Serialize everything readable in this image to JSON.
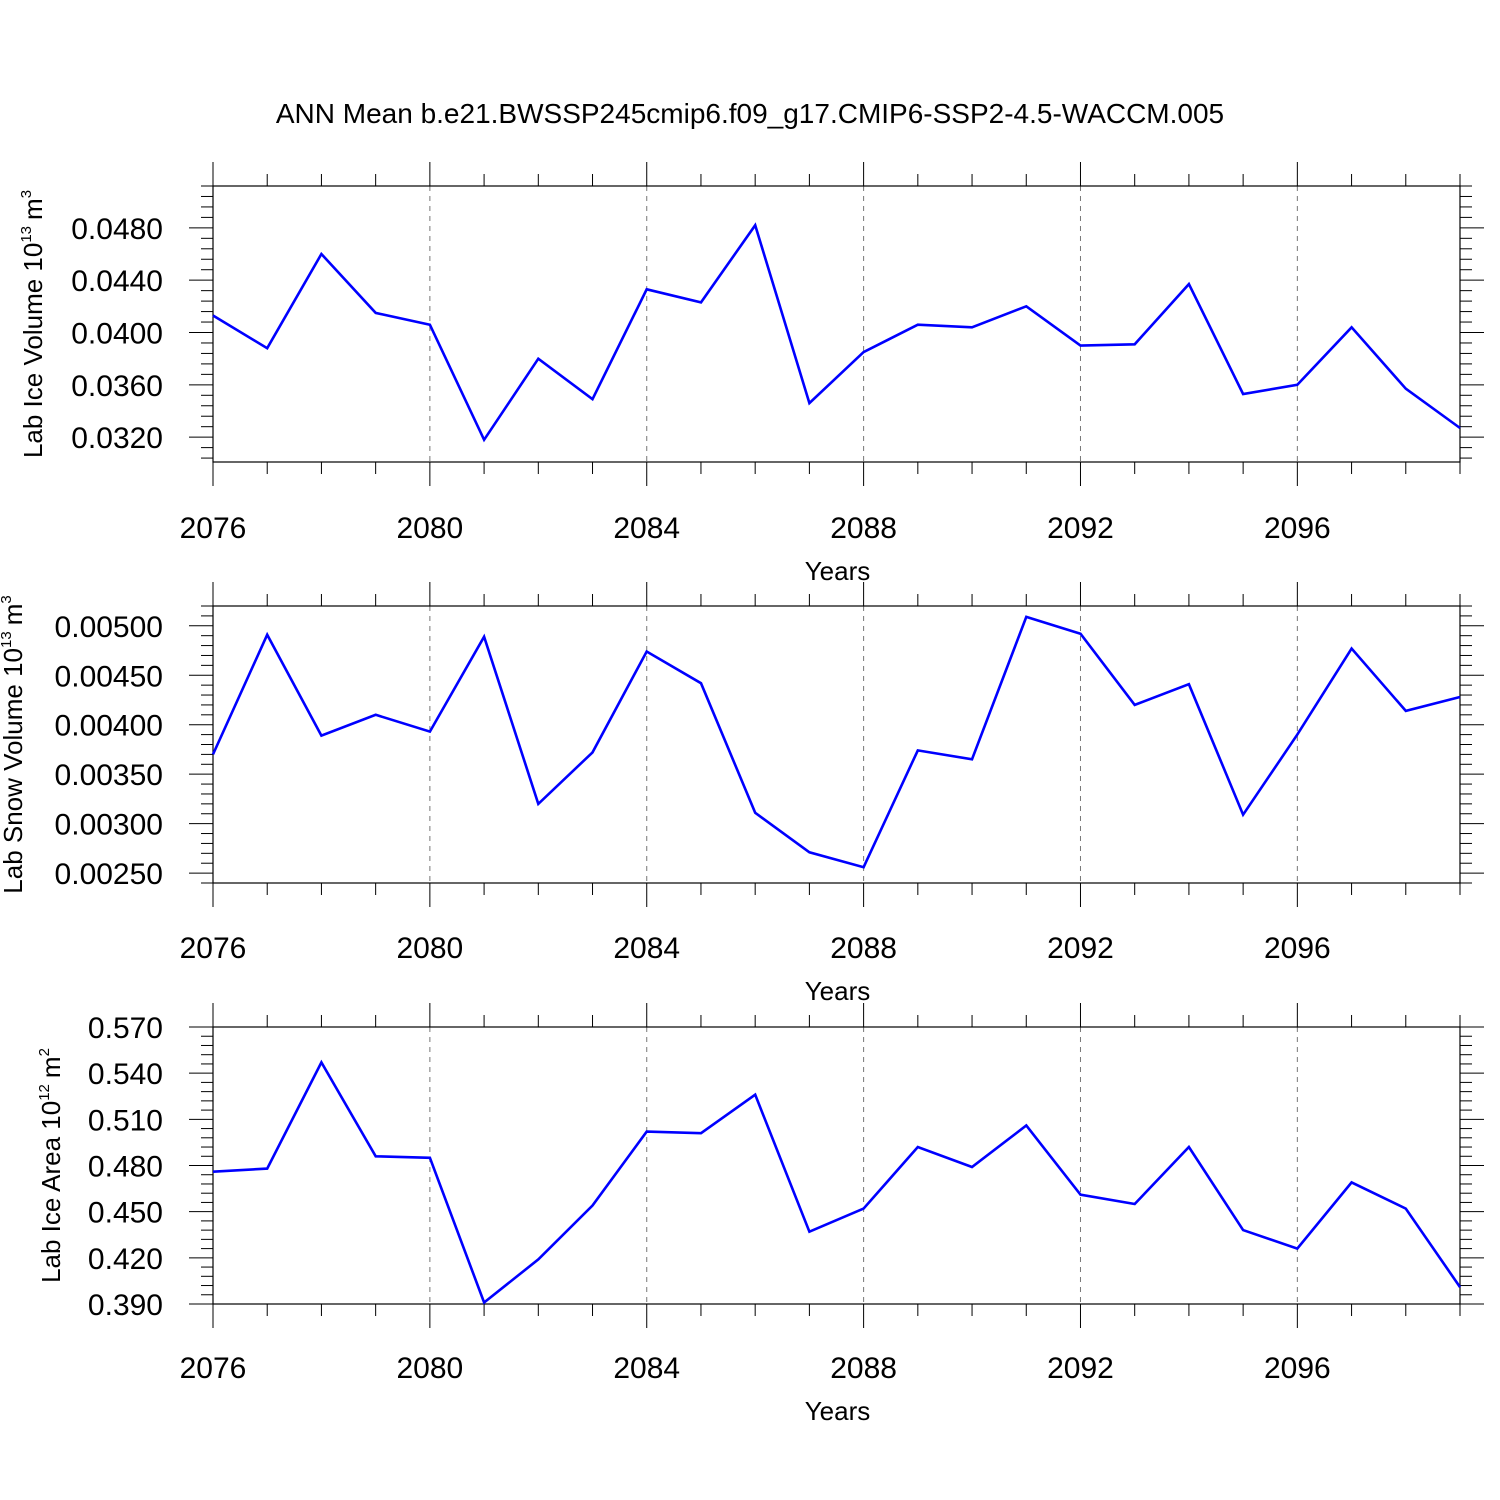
{
  "chart_data": {
    "figure_title": "ANN Mean b.e21.BWSSP245cmip6.f09_g17.CMIP6-SSP2-4.5-WACCM.005",
    "line_color": "#0000ff",
    "panels": [
      {
        "type": "line",
        "ylabel": "Lab Ice Volume 10",
        "ylabel_exp": "13",
        "ylabel_unit": "m",
        "ylabel_unit_exp": "3",
        "xlabel": "Years",
        "xlim": [
          2076,
          2099
        ],
        "ylim": [
          0.0301,
          0.0512
        ],
        "yticks": [
          0.032,
          0.036,
          0.04,
          0.044,
          0.048
        ],
        "ytick_labels": [
          "0.0320",
          "0.0360",
          "0.0400",
          "0.0440",
          "0.0480"
        ],
        "xticks": [
          2076,
          2080,
          2084,
          2088,
          2092,
          2096
        ],
        "xtick_labels": [
          "2076",
          "2080",
          "2084",
          "2088",
          "2092",
          "2096"
        ],
        "x": [
          2076,
          2077,
          2078,
          2079,
          2080,
          2081,
          2082,
          2083,
          2084,
          2085,
          2086,
          2087,
          2088,
          2089,
          2090,
          2091,
          2092,
          2093,
          2094,
          2095,
          2096,
          2097,
          2098,
          2099
        ],
        "values": [
          0.0413,
          0.0388,
          0.046,
          0.0415,
          0.0406,
          0.0318,
          0.038,
          0.0349,
          0.0433,
          0.0423,
          0.0482,
          0.0346,
          0.0385,
          0.0406,
          0.0404,
          0.042,
          0.039,
          0.0391,
          0.0437,
          0.0353,
          0.036,
          0.0404,
          0.0357,
          0.0327
        ]
      },
      {
        "type": "line",
        "ylabel": "Lab Snow Volume 10",
        "ylabel_exp": "13",
        "ylabel_unit": "m",
        "ylabel_unit_exp": "3",
        "xlabel": "Years",
        "xlim": [
          2076,
          2099
        ],
        "ylim": [
          0.0024,
          0.0052
        ],
        "yticks": [
          0.0025,
          0.003,
          0.0035,
          0.004,
          0.0045,
          0.005
        ],
        "ytick_labels": [
          "0.00250",
          "0.00300",
          "0.00350",
          "0.00400",
          "0.00450",
          "0.00500"
        ],
        "xticks": [
          2076,
          2080,
          2084,
          2088,
          2092,
          2096
        ],
        "xtick_labels": [
          "2076",
          "2080",
          "2084",
          "2088",
          "2092",
          "2096"
        ],
        "x": [
          2076,
          2077,
          2078,
          2079,
          2080,
          2081,
          2082,
          2083,
          2084,
          2085,
          2086,
          2087,
          2088,
          2089,
          2090,
          2091,
          2092,
          2093,
          2094,
          2095,
          2096,
          2097,
          2098,
          2099
        ],
        "values": [
          0.0037,
          0.00491,
          0.00389,
          0.0041,
          0.00393,
          0.00489,
          0.0032,
          0.00372,
          0.00474,
          0.00442,
          0.00311,
          0.00271,
          0.00256,
          0.00374,
          0.00365,
          0.00509,
          0.00492,
          0.0042,
          0.00441,
          0.00309,
          0.0039,
          0.00477,
          0.00414,
          0.00428
        ]
      },
      {
        "type": "line",
        "ylabel": "Lab Ice Area 10",
        "ylabel_exp": "12",
        "ylabel_unit": "m",
        "ylabel_unit_exp": "2",
        "xlabel": "Years",
        "xlim": [
          2076,
          2099
        ],
        "ylim": [
          0.39,
          0.57
        ],
        "yticks": [
          0.39,
          0.42,
          0.45,
          0.48,
          0.51,
          0.54,
          0.57
        ],
        "ytick_labels": [
          "0.390",
          "0.420",
          "0.450",
          "0.480",
          "0.510",
          "0.540",
          "0.570"
        ],
        "xticks": [
          2076,
          2080,
          2084,
          2088,
          2092,
          2096
        ],
        "xtick_labels": [
          "2076",
          "2080",
          "2084",
          "2088",
          "2092",
          "2096"
        ],
        "x": [
          2076,
          2077,
          2078,
          2079,
          2080,
          2081,
          2082,
          2083,
          2084,
          2085,
          2086,
          2087,
          2088,
          2089,
          2090,
          2091,
          2092,
          2093,
          2094,
          2095,
          2096,
          2097,
          2098,
          2099
        ],
        "values": [
          0.476,
          0.478,
          0.547,
          0.486,
          0.485,
          0.391,
          0.419,
          0.454,
          0.502,
          0.501,
          0.526,
          0.437,
          0.452,
          0.492,
          0.479,
          0.506,
          0.461,
          0.455,
          0.492,
          0.438,
          0.426,
          0.469,
          0.452,
          0.401
        ]
      }
    ]
  }
}
